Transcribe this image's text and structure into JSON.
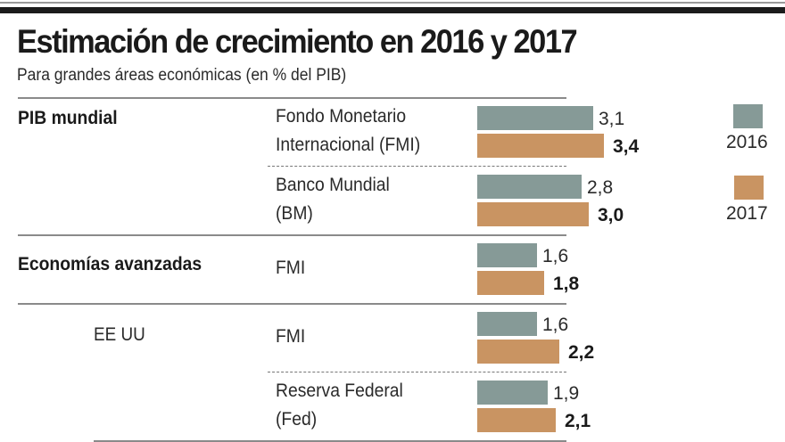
{
  "header": {
    "title": "Estimación de crecimiento en 2016 y 2017",
    "subtitle": "Para grandes áreas económicas (en % del PIB)"
  },
  "colors": {
    "2016": "#869a97",
    "2017": "#c99462"
  },
  "legend": [
    {
      "label": "2016",
      "color_key": "2016"
    },
    {
      "label": "2017",
      "color_key": "2017"
    }
  ],
  "chart_data": {
    "type": "bar",
    "orientation": "horizontal",
    "title": "Estimación de crecimiento en 2016 y 2017",
    "subtitle": "Para grandes áreas económicas (en % del PIB)",
    "xlabel": "",
    "ylabel": "",
    "unit": "% del PIB",
    "legend_position": "right",
    "grid": false,
    "xlim": [
      0,
      3.4
    ],
    "series_names": [
      "2016",
      "2017"
    ],
    "groups": [
      {
        "category": "PIB mundial",
        "subcategory": "",
        "rows": [
          {
            "source_line1": "Fondo Monetario",
            "source_line2": "Internacional (FMI)",
            "values": [
              3.1,
              3.4
            ],
            "labels": [
              "3,1",
              "3,4"
            ]
          },
          {
            "source_line1": "Banco Mundial",
            "source_line2": "(BM)",
            "values": [
              2.8,
              3.0
            ],
            "labels": [
              "2,8",
              "3,0"
            ]
          }
        ]
      },
      {
        "category": "Economías avanzadas",
        "subcategory": "",
        "rows": [
          {
            "source_line1": "FMI",
            "source_line2": "",
            "values": [
              1.6,
              1.8
            ],
            "labels": [
              "1,6",
              "1,8"
            ]
          }
        ]
      },
      {
        "category": "",
        "subcategory": "EE UU",
        "rows": [
          {
            "source_line1": "FMI",
            "source_line2": "",
            "values": [
              1.6,
              2.2
            ],
            "labels": [
              "1,6",
              "2,2"
            ]
          },
          {
            "source_line1": "Reserva Federal",
            "source_line2": "(Fed)",
            "values": [
              1.9,
              2.1
            ],
            "labels": [
              "1,9",
              "2,1"
            ]
          }
        ]
      }
    ]
  }
}
